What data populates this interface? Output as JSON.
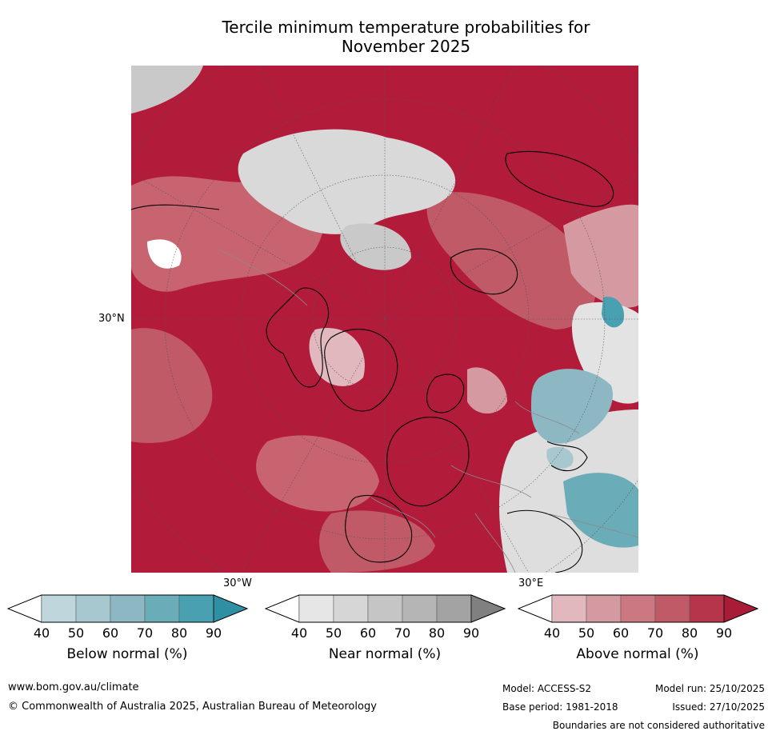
{
  "title": {
    "line1": "Tercile minimum temperature probabilities for",
    "line2": "November 2025"
  },
  "map": {
    "projection": "north-polar-stereographic",
    "graticule_labels": {
      "lat_30n": "30°N",
      "lon_30w": "30°W",
      "lon_30e": "30°E"
    },
    "colors": {
      "above_dominant": "#b31b3a",
      "near_normal_grey": "#d8d8d8",
      "below_teal": "#4aa0b0",
      "coastline": "#000000",
      "borders": "#888888"
    }
  },
  "legends": [
    {
      "name": "below",
      "label": "Below normal (%)",
      "ticks": [
        "40",
        "50",
        "60",
        "70",
        "80",
        "90"
      ],
      "colors": [
        "#ffffff",
        "#bfd6dc",
        "#a7c8cf",
        "#8db8c3",
        "#6aacb7",
        "#48a0b1",
        "#2f8fa3"
      ]
    },
    {
      "name": "near",
      "label": "Near normal (%)",
      "ticks": [
        "40",
        "50",
        "60",
        "70",
        "80",
        "90"
      ],
      "colors": [
        "#ffffff",
        "#e6e6e6",
        "#d6d6d6",
        "#c5c5c5",
        "#b5b5b5",
        "#a3a3a3",
        "#808080"
      ]
    },
    {
      "name": "above",
      "label": "Above normal (%)",
      "ticks": [
        "40",
        "50",
        "60",
        "70",
        "80",
        "90"
      ],
      "colors": [
        "#ffffff",
        "#e0b8bd",
        "#d59aa1",
        "#cb7882",
        "#c05a67",
        "#b7354b",
        "#a81c37"
      ]
    }
  ],
  "footer": {
    "website": "www.bom.gov.au/climate",
    "copyright": "© Commonwealth of Australia 2025, Australian Bureau of Meteorology",
    "model": "Model: ACCESS-S2",
    "base_period": "Base period: 1981-2018",
    "model_run": "Model run: 25/10/2025",
    "issued": "Issued: 27/10/2025",
    "disclaimer": "Boundaries are not considered authoritative"
  }
}
